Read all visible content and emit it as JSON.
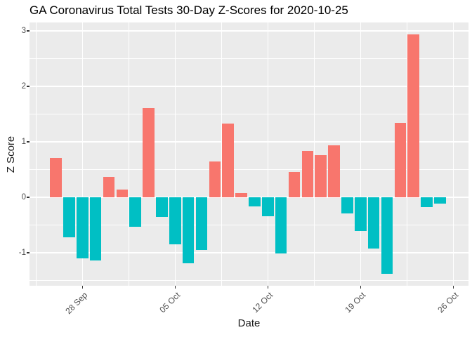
{
  "title": "GA Coronavirus Total Tests 30-Day Z-Scores for 2020-10-25",
  "chart_data": {
    "type": "bar",
    "title": "GA Coronavirus Total Tests 30-Day Z-Scores for 2020-10-25",
    "xlabel": "Date",
    "ylabel": "Z Score",
    "legend": "none",
    "grid": true,
    "ylim": [
      -1.6,
      3.15
    ],
    "categories": [
      "26 Sep",
      "27 Sep",
      "28 Sep",
      "29 Sep",
      "30 Sep",
      "01 Oct",
      "02 Oct",
      "03 Oct",
      "04 Oct",
      "05 Oct",
      "06 Oct",
      "07 Oct",
      "08 Oct",
      "09 Oct",
      "10 Oct",
      "11 Oct",
      "12 Oct",
      "13 Oct",
      "14 Oct",
      "15 Oct",
      "16 Oct",
      "17 Oct",
      "18 Oct",
      "19 Oct",
      "20 Oct",
      "21 Oct",
      "22 Oct",
      "23 Oct",
      "24 Oct",
      "25 Oct"
    ],
    "values": [
      0.71,
      -0.72,
      -1.1,
      -1.14,
      0.37,
      0.14,
      -0.53,
      1.61,
      -0.36,
      -0.85,
      -1.19,
      -0.95,
      0.64,
      1.33,
      0.08,
      -0.17,
      -0.34,
      -1.01,
      0.46,
      0.83,
      0.76,
      0.94,
      -0.29,
      -0.61,
      -0.92,
      -1.38,
      1.34,
      2.94,
      -0.18,
      -0.11
    ],
    "x_tick_labels": [
      "28 Sep",
      "05 Oct",
      "12 Oct",
      "19 Oct",
      "26 Oct"
    ],
    "x_tick_day_indexes": [
      2,
      9,
      16,
      23,
      30
    ],
    "x_minor_day_indexes": [
      -1.5,
      5.5,
      12.5,
      19.5,
      26.5
    ],
    "y_tick_labels": [
      "3",
      "2",
      "1",
      "0",
      "-1"
    ],
    "y_tick_values": [
      3,
      2,
      1,
      0,
      -1
    ],
    "y_minor_tick_values": [
      2.5,
      1.5,
      0.5,
      -0.5,
      -1.5
    ],
    "colors": {
      "positive_bar": "#F8766D",
      "negative_bar": "#00BFC4",
      "panel_background": "#EBEBEB",
      "gridline": "#FFFFFF",
      "tick_label": "#4D4D4D",
      "axis_title": "#1A1A1A",
      "plot_title": "#000000",
      "background": "#FFFFFF"
    }
  }
}
